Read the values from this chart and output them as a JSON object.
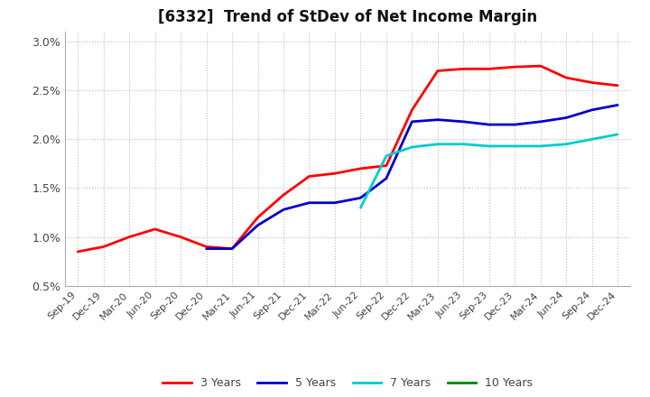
{
  "title": "[6332]  Trend of StDev of Net Income Margin",
  "title_fontsize": 12,
  "background_color": "#ffffff",
  "grid_color": "#aaaaaa",
  "ylim": [
    0.005,
    0.031
  ],
  "yticks": [
    0.005,
    0.01,
    0.015,
    0.02,
    0.025,
    0.03
  ],
  "x_labels": [
    "Sep-19",
    "Dec-19",
    "Mar-20",
    "Jun-20",
    "Sep-20",
    "Dec-20",
    "Mar-21",
    "Jun-21",
    "Sep-21",
    "Dec-21",
    "Mar-22",
    "Jun-22",
    "Sep-22",
    "Dec-22",
    "Mar-23",
    "Jun-23",
    "Sep-23",
    "Dec-23",
    "Mar-24",
    "Jun-24",
    "Sep-24",
    "Dec-24"
  ],
  "y_3yr": [
    0.0085,
    0.009,
    0.01,
    0.0108,
    0.01,
    0.009,
    0.0088,
    0.012,
    0.0143,
    0.0162,
    0.0165,
    0.017,
    0.0173,
    0.023,
    0.027,
    0.0272,
    0.0272,
    0.0274,
    0.0275,
    0.0263,
    0.0258,
    0.0255
  ],
  "y_5yr": [
    null,
    null,
    null,
    null,
    null,
    0.0088,
    0.0088,
    0.0112,
    0.0128,
    0.0135,
    0.0135,
    0.014,
    0.016,
    0.0218,
    0.022,
    0.0218,
    0.0215,
    0.0215,
    0.0218,
    0.0222,
    0.023,
    0.0235
  ],
  "y_7yr": [
    null,
    null,
    null,
    null,
    null,
    null,
    null,
    null,
    null,
    null,
    null,
    0.013,
    0.0183,
    0.0192,
    0.0195,
    0.0195,
    0.0193,
    0.0193,
    0.0193,
    0.0195,
    0.02,
    0.0205
  ],
  "y_10yr": [
    null,
    null,
    null,
    null,
    null,
    null,
    null,
    null,
    null,
    null,
    null,
    null,
    null,
    null,
    null,
    null,
    null,
    null,
    null,
    null,
    null,
    null
  ],
  "color_3yr": "#ff0000",
  "color_5yr": "#0000cc",
  "color_7yr": "#00cccc",
  "color_10yr": "#008800",
  "linewidth": 2.0,
  "legend_labels": [
    "3 Years",
    "5 Years",
    "7 Years",
    "10 Years"
  ],
  "legend_colors": [
    "#ff0000",
    "#0000cc",
    "#00cccc",
    "#008800"
  ]
}
